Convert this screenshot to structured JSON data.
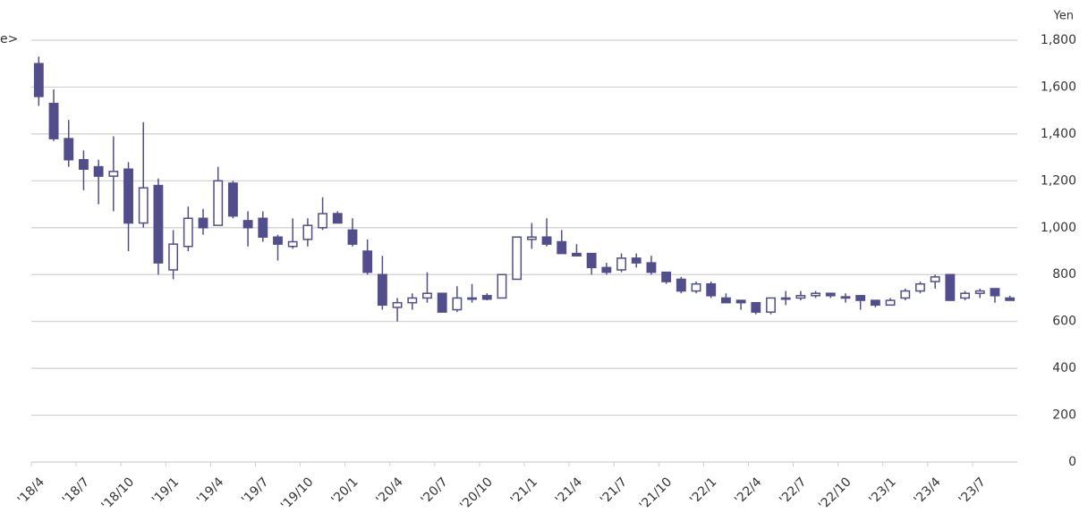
{
  "chart_data": {
    "type": "candlestick",
    "corner_text": "e>",
    "y_axis_label": "Yen",
    "categories": [
      "'18/4",
      null,
      null,
      "'18/7",
      null,
      null,
      "'18/10",
      null,
      null,
      "'19/1",
      null,
      null,
      "'19/4",
      null,
      null,
      "'19/7",
      null,
      null,
      "'19/10",
      null,
      null,
      "'20/1",
      null,
      null,
      "'20/4",
      null,
      null,
      "'20/7",
      null,
      null,
      "'20/10",
      null,
      null,
      "'21/1",
      null,
      null,
      "'21/4",
      null,
      null,
      "'21/7",
      null,
      null,
      "'21/10",
      null,
      null,
      "'22/1",
      null,
      null,
      "'22/4",
      null,
      null,
      "'22/7",
      null,
      null,
      "'22/10",
      null,
      null,
      "'23/1",
      null,
      null,
      "'23/4",
      null,
      null,
      "'23/7",
      null,
      null
    ],
    "open": [
      1700,
      1530,
      1380,
      1290,
      1260,
      1220,
      1250,
      1020,
      1180,
      820,
      920,
      1040,
      1010,
      1190,
      1030,
      1040,
      960,
      920,
      950,
      1000,
      1060,
      990,
      900,
      800,
      660,
      680,
      700,
      720,
      650,
      695,
      710,
      700,
      780,
      950,
      960,
      940,
      890,
      890,
      830,
      820,
      870,
      850,
      810,
      780,
      730,
      760,
      700,
      690,
      680,
      640,
      695,
      700,
      710,
      720,
      705,
      710,
      690,
      670,
      700,
      730,
      770,
      800,
      700,
      720,
      740,
      700
    ],
    "high": [
      1730,
      1590,
      1460,
      1330,
      1290,
      1390,
      1280,
      1450,
      1210,
      990,
      1090,
      1080,
      1260,
      1200,
      1070,
      1070,
      970,
      1040,
      1040,
      1130,
      1070,
      1040,
      950,
      880,
      700,
      720,
      810,
      720,
      750,
      760,
      720,
      800,
      960,
      1020,
      1040,
      990,
      930,
      890,
      850,
      890,
      890,
      880,
      810,
      790,
      770,
      770,
      720,
      690,
      680,
      700,
      730,
      730,
      730,
      720,
      720,
      710,
      690,
      700,
      740,
      770,
      800,
      800,
      730,
      740,
      740,
      710
    ],
    "low": [
      1520,
      1370,
      1260,
      1160,
      1100,
      1070,
      900,
      1000,
      800,
      780,
      900,
      970,
      1010,
      1040,
      920,
      940,
      860,
      910,
      920,
      990,
      1020,
      920,
      800,
      650,
      600,
      650,
      680,
      640,
      640,
      680,
      690,
      700,
      780,
      910,
      920,
      890,
      880,
      800,
      800,
      810,
      830,
      800,
      760,
      720,
      720,
      700,
      680,
      650,
      630,
      630,
      670,
      690,
      700,
      700,
      680,
      650,
      660,
      670,
      690,
      720,
      740,
      690,
      690,
      700,
      680,
      690
    ],
    "close": [
      1560,
      1380,
      1290,
      1250,
      1220,
      1240,
      1020,
      1170,
      850,
      930,
      1040,
      1000,
      1200,
      1050,
      1000,
      960,
      930,
      940,
      1010,
      1060,
      1020,
      930,
      810,
      670,
      680,
      700,
      720,
      640,
      700,
      700,
      695,
      800,
      960,
      960,
      930,
      890,
      880,
      830,
      810,
      870,
      850,
      810,
      770,
      730,
      760,
      710,
      680,
      680,
      640,
      700,
      700,
      710,
      720,
      710,
      700,
      690,
      670,
      690,
      730,
      760,
      790,
      690,
      720,
      730,
      710,
      690
    ],
    "up_color": "#ffffff",
    "down_color": "#524d8c",
    "edge_color": "#524d8c",
    "ylim": [
      0,
      1800
    ],
    "yticks": [
      0,
      200,
      400,
      600,
      800,
      {
        "value": 1000,
        "label": "1,000"
      },
      {
        "value": 1200,
        "label": "1,200"
      },
      {
        "value": 1400,
        "label": "1,400"
      },
      {
        "value": 1600,
        "label": "1,600"
      },
      {
        "value": 1800,
        "label": "1,800"
      }
    ],
    "grid": true
  }
}
